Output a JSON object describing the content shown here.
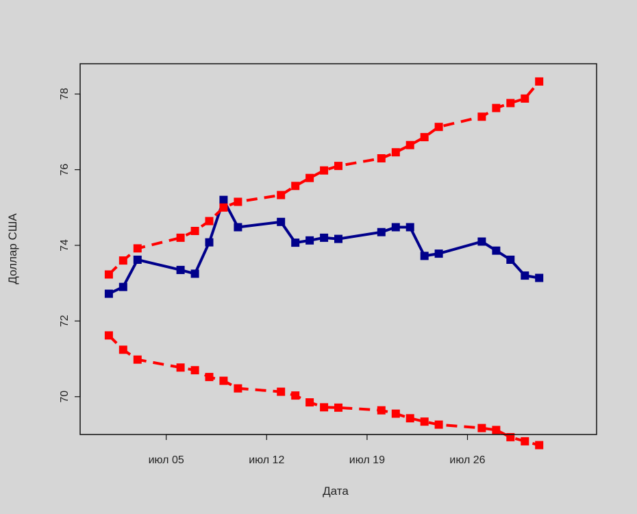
{
  "chart_data": {
    "type": "line",
    "title": "",
    "xlabel": "Дата",
    "ylabel": "Доллар США",
    "ylim": [
      69,
      78.8
    ],
    "xlim": [
      "2021-06-29",
      "2021-08-04"
    ],
    "x_ticks": [
      {
        "date": "2021-07-05",
        "label": "июл 05"
      },
      {
        "date": "2021-07-12",
        "label": "июл 12"
      },
      {
        "date": "2021-07-19",
        "label": "июл 19"
      },
      {
        "date": "2021-07-26",
        "label": "июл 26"
      }
    ],
    "y_ticks": [
      70,
      72,
      74,
      76,
      78
    ],
    "grid": false,
    "legend": "none",
    "x": [
      "2021-07-01",
      "2021-07-02",
      "2021-07-03",
      "2021-07-06",
      "2021-07-07",
      "2021-07-08",
      "2021-07-09",
      "2021-07-10",
      "2021-07-13",
      "2021-07-14",
      "2021-07-15",
      "2021-07-16",
      "2021-07-17",
      "2021-07-20",
      "2021-07-21",
      "2021-07-22",
      "2021-07-23",
      "2021-07-24",
      "2021-07-27",
      "2021-07-28",
      "2021-07-29",
      "2021-07-30",
      "2021-07-31"
    ],
    "series": [
      {
        "color": "#00008b",
        "line": "solid",
        "values": [
          72.72,
          72.9,
          73.62,
          73.35,
          73.25,
          74.08,
          75.2,
          74.48,
          74.62,
          74.07,
          74.13,
          74.2,
          74.17,
          74.35,
          74.48,
          74.48,
          73.72,
          73.78,
          74.1,
          73.86,
          73.62,
          73.2,
          73.14
        ]
      },
      {
        "color": "#ff0000",
        "line": "dashed",
        "values": [
          73.23,
          73.6,
          73.92,
          74.2,
          74.38,
          74.64,
          75.0,
          75.15,
          75.33,
          75.57,
          75.78,
          75.98,
          76.1,
          76.3,
          76.46,
          76.65,
          76.86,
          77.13,
          77.4,
          77.63,
          77.76,
          77.88,
          78.33
        ]
      },
      {
        "color": "#ff0000",
        "line": "dashed",
        "values": [
          71.62,
          71.24,
          70.98,
          70.77,
          70.7,
          70.52,
          70.42,
          70.22,
          70.13,
          70.03,
          69.85,
          69.72,
          69.71,
          69.64,
          69.55,
          69.43,
          69.34,
          69.26,
          69.17,
          69.12,
          68.93,
          68.82,
          68.72
        ]
      }
    ]
  }
}
